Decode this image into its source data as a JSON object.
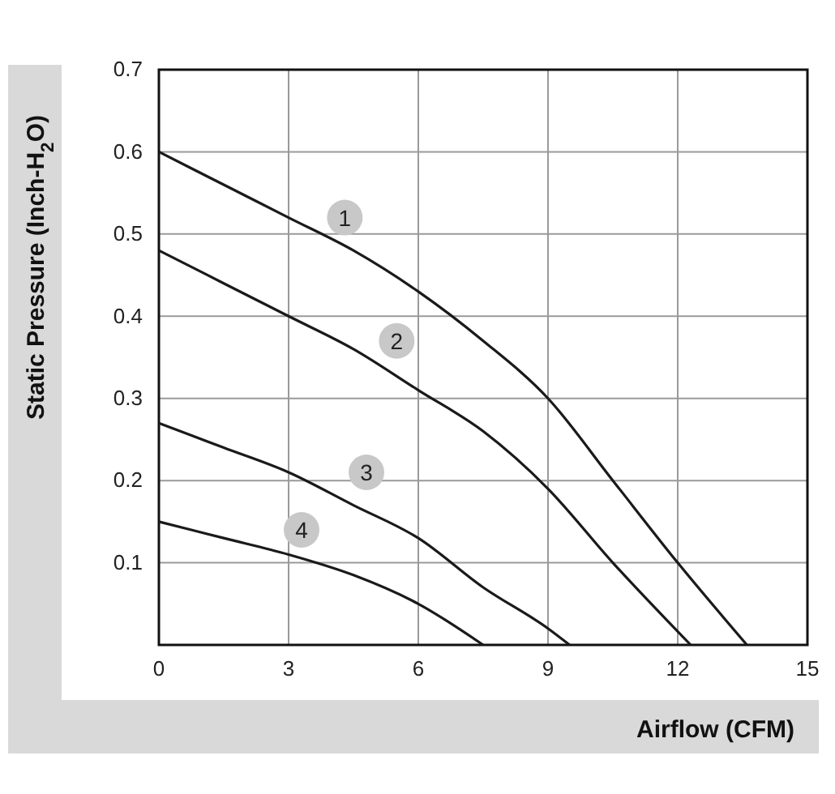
{
  "chart_data": {
    "type": "line",
    "xlabel": "Airflow (CFM)",
    "ylabel": "Static Pressure (Inch-H$_{2}$O)",
    "xlim": [
      0,
      15
    ],
    "xticks": [
      0,
      3,
      6,
      9,
      12,
      15
    ],
    "ylim": [
      0,
      0.7
    ],
    "yticks": [
      0.1,
      0.2,
      0.3,
      0.4,
      0.5,
      0.6,
      0.7
    ],
    "grid": true,
    "series": [
      {
        "color": "#1a1a1a",
        "x": [
          0,
          1.5,
          3,
          4.5,
          6,
          7.5,
          9,
          10.5,
          12,
          13.6
        ],
        "values": [
          0.6,
          0.56,
          0.52,
          0.48,
          0.43,
          0.37,
          0.3,
          0.2,
          0.1,
          0
        ]
      },
      {
        "color": "#1a1a1a",
        "x": [
          0,
          1.5,
          3,
          4.5,
          6,
          7.5,
          9,
          10.5,
          12.3
        ],
        "values": [
          0.48,
          0.44,
          0.4,
          0.36,
          0.31,
          0.26,
          0.19,
          0.1,
          0
        ]
      },
      {
        "color": "#1a1a1a",
        "x": [
          0,
          1.5,
          3,
          4.5,
          6,
          7.5,
          9,
          9.5
        ],
        "values": [
          0.27,
          0.24,
          0.21,
          0.17,
          0.13,
          0.07,
          0.02,
          0
        ]
      },
      {
        "color": "#1a1a1a",
        "x": [
          0,
          1.5,
          3,
          4.5,
          6,
          7.5
        ],
        "values": [
          0.15,
          0.13,
          0.11,
          0.085,
          0.05,
          0
        ]
      }
    ],
    "annotations": [
      {
        "text": "1",
        "x": 4.3,
        "y": 0.52
      },
      {
        "text": "2",
        "x": 5.5,
        "y": 0.37
      },
      {
        "text": "3",
        "x": 4.8,
        "y": 0.21
      },
      {
        "text": "4",
        "x": 3.3,
        "y": 0.14
      }
    ]
  }
}
